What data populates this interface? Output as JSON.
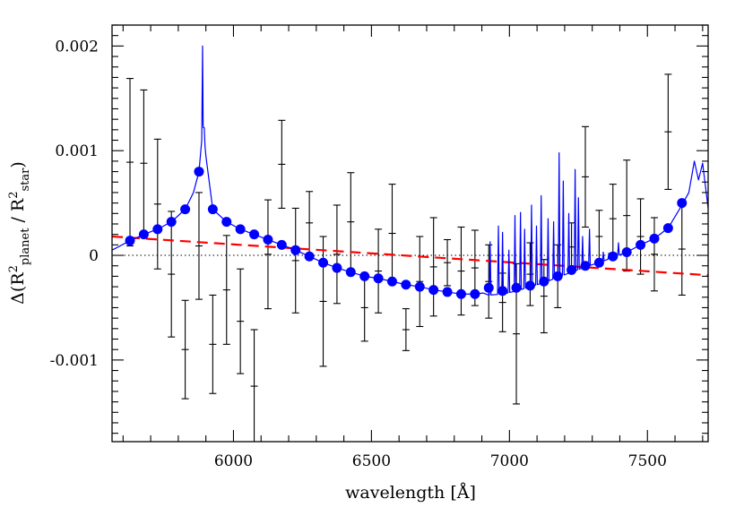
{
  "chart_data": {
    "type": "scatter",
    "title": "",
    "xlabel": "wavelength [Å]",
    "ylabel": {
      "prefix": "Δ(R",
      "exp1": "2",
      "sub1": "planet",
      "middle": " / R",
      "exp2": "2",
      "sub2": "star",
      "suffix": ")"
    },
    "xlim": [
      5560,
      7720
    ],
    "ylim": [
      -0.00178,
      0.0022
    ],
    "x_ticks": [
      6000,
      6500,
      7000,
      7500
    ],
    "x_tick_labels": [
      "6000",
      "6500",
      "7000",
      "7500"
    ],
    "y_ticks": [
      -0.001,
      0,
      0.001,
      0.002
    ],
    "y_tick_labels": [
      "-0.001",
      "0",
      "0.001",
      "0.002"
    ],
    "grid": false,
    "colors": {
      "model_line": "#0000ff",
      "binned_points": "#0000ff",
      "trend_line": "#ff0000",
      "data": "#000000",
      "zero_line": "#000000"
    },
    "series": [
      {
        "name": "observed data with error bars",
        "style": "errorbar",
        "points": [
          {
            "x": 5625,
            "y": 0.00089,
            "err": 0.0008
          },
          {
            "x": 5675,
            "y": 0.00088,
            "err": 0.0007
          },
          {
            "x": 5725,
            "y": 0.00049,
            "err": 0.00062
          },
          {
            "x": 5775,
            "y": -0.00018,
            "err": 0.0006
          },
          {
            "x": 5825,
            "y": -0.0009,
            "err": 0.00047
          },
          {
            "x": 5875,
            "y": 9e-05,
            "err": 0.00051
          },
          {
            "x": 5925,
            "y": -0.00085,
            "err": 0.00047
          },
          {
            "x": 5975,
            "y": -0.00033,
            "err": 0.00052
          },
          {
            "x": 6025,
            "y": -0.00063,
            "err": 0.0005
          },
          {
            "x": 6075,
            "y": -0.00125,
            "err": 0.00054
          },
          {
            "x": 6125,
            "y": 1e-05,
            "err": 0.00052
          },
          {
            "x": 6175,
            "y": 0.00087,
            "err": 0.00042
          },
          {
            "x": 6225,
            "y": -5e-05,
            "err": 0.0005
          },
          {
            "x": 6275,
            "y": 0.00031,
            "err": 0.0003
          },
          {
            "x": 6325,
            "y": -0.00044,
            "err": 0.00062
          },
          {
            "x": 6375,
            "y": 1e-05,
            "err": 0.00047
          },
          {
            "x": 6425,
            "y": 0.00032,
            "err": 0.00047
          },
          {
            "x": 6475,
            "y": -0.0005,
            "err": 0.00032
          },
          {
            "x": 6525,
            "y": -0.00015,
            "err": 0.0004
          },
          {
            "x": 6575,
            "y": 0.00021,
            "err": 0.00047
          },
          {
            "x": 6625,
            "y": -0.00071,
            "err": 0.0002
          },
          {
            "x": 6675,
            "y": -0.00025,
            "err": 0.00043
          },
          {
            "x": 6725,
            "y": -0.00011,
            "err": 0.00047
          },
          {
            "x": 6775,
            "y": -7e-05,
            "err": 0.00022
          },
          {
            "x": 6825,
            "y": -0.00015,
            "err": 0.00042
          },
          {
            "x": 6875,
            "y": -0.00012,
            "err": 0.00036
          },
          {
            "x": 6925,
            "y": -0.00025,
            "err": 0.00035
          },
          {
            "x": 6975,
            "y": -0.00045,
            "err": 0.00028
          },
          {
            "x": 7025,
            "y": -0.00075,
            "err": 0.00067
          },
          {
            "x": 7075,
            "y": -0.00018,
            "err": 0.0003
          },
          {
            "x": 7125,
            "y": -0.00039,
            "err": 0.00035
          },
          {
            "x": 7175,
            "y": -0.0002,
            "err": 0.0003
          },
          {
            "x": 7225,
            "y": 8e-05,
            "err": 0.00023
          },
          {
            "x": 7275,
            "y": 0.00075,
            "err": 0.00048
          },
          {
            "x": 7325,
            "y": 0.00018,
            "err": 0.00025
          },
          {
            "x": 7375,
            "y": 0.00035,
            "err": 0.00033
          },
          {
            "x": 7425,
            "y": 0.00038,
            "err": 0.00053
          },
          {
            "x": 7475,
            "y": 0.00018,
            "err": 0.00036
          },
          {
            "x": 7525,
            "y": 1e-05,
            "err": 0.00035
          },
          {
            "x": 7575,
            "y": 0.00118,
            "err": 0.00055
          },
          {
            "x": 7625,
            "y": 6e-05,
            "err": 0.00044
          }
        ]
      },
      {
        "name": "binned model",
        "style": "markers",
        "x": [
          5625,
          5675,
          5725,
          5775,
          5825,
          5875,
          5925,
          5975,
          6025,
          6075,
          6125,
          6175,
          6225,
          6275,
          6325,
          6375,
          6425,
          6475,
          6525,
          6575,
          6625,
          6675,
          6725,
          6775,
          6825,
          6875,
          6925,
          6975,
          7025,
          7075,
          7125,
          7175,
          7225,
          7275,
          7325,
          7375,
          7425,
          7475,
          7525,
          7575,
          7625
        ],
        "y": [
          0.00014,
          0.0002,
          0.00025,
          0.00032,
          0.00044,
          0.0008,
          0.00044,
          0.00032,
          0.00025,
          0.0002,
          0.00015,
          0.0001,
          5e-05,
          -1e-05,
          -7e-05,
          -0.00012,
          -0.00016,
          -0.0002,
          -0.00022,
          -0.00025,
          -0.00028,
          -0.0003,
          -0.00033,
          -0.00035,
          -0.00037,
          -0.00037,
          -0.00031,
          -0.00034,
          -0.00031,
          -0.00029,
          -0.00025,
          -0.0002,
          -0.00014,
          -0.0001,
          -7e-05,
          -1e-05,
          3e-05,
          0.0001,
          0.00016,
          0.00026,
          0.0005
        ]
      }
    ],
    "model_spectrum": {
      "name": "model transmission spectrum",
      "continuum_x": [
        5560,
        5625,
        5675,
        5725,
        5775,
        5825,
        5855,
        5875,
        5890,
        5900,
        5925,
        5975,
        6025,
        6075,
        6125,
        6175,
        6225,
        6275,
        6325,
        6375,
        6425,
        6475,
        6525,
        6575,
        6625,
        6675,
        6725,
        6775,
        6825,
        6875,
        6905,
        6925,
        6975,
        7025,
        7075,
        7125,
        7175,
        7225,
        7275,
        7325,
        7375,
        7425,
        7475,
        7525,
        7575,
        7625,
        7650,
        7670,
        7685,
        7700,
        7720
      ],
      "continuum_y": [
        5e-05,
        0.00014,
        0.0002,
        0.00025,
        0.00032,
        0.00044,
        0.0006,
        0.0008,
        0.00125,
        0.00095,
        0.00044,
        0.00032,
        0.00025,
        0.0002,
        0.00015,
        0.0001,
        5e-05,
        -1e-05,
        -7e-05,
        -0.00012,
        -0.00016,
        -0.0002,
        -0.00022,
        -0.00025,
        -0.00028,
        -0.0003,
        -0.00033,
        -0.00035,
        -0.00037,
        -0.00037,
        -0.00036,
        -0.00038,
        -0.00037,
        -0.00034,
        -0.0003,
        -0.00026,
        -0.00021,
        -0.00016,
        -0.00011,
        -7e-05,
        -2e-05,
        3e-05,
        0.0001,
        0.00016,
        0.00026,
        0.00048,
        0.0006,
        0.0009,
        0.00072,
        0.00088,
        0.00045
      ],
      "peaks": [
        {
          "x": 5888,
          "y": 0.002
        },
        {
          "x": 5894,
          "y": 0.00122
        },
        {
          "x": 6930,
          "y": 0.00013
        },
        {
          "x": 6960,
          "y": 0.00028
        },
        {
          "x": 6975,
          "y": 0.00022
        },
        {
          "x": 6998,
          "y": 5e-05
        },
        {
          "x": 7020,
          "y": 0.00038
        },
        {
          "x": 7040,
          "y": 0.00041
        },
        {
          "x": 7055,
          "y": 0.00025
        },
        {
          "x": 7080,
          "y": 0.00048
        },
        {
          "x": 7098,
          "y": 0.00028
        },
        {
          "x": 7115,
          "y": 0.00057
        },
        {
          "x": 7140,
          "y": 0.00035
        },
        {
          "x": 7160,
          "y": 0.00032
        },
        {
          "x": 7180,
          "y": 0.00098
        },
        {
          "x": 7195,
          "y": 0.00071
        },
        {
          "x": 7215,
          "y": 0.0004
        },
        {
          "x": 7238,
          "y": 0.00082
        },
        {
          "x": 7250,
          "y": 0.00055
        },
        {
          "x": 7265,
          "y": 0.00018
        },
        {
          "x": 7290,
          "y": 0.00025
        },
        {
          "x": 7340,
          "y": 3e-05
        },
        {
          "x": 7360,
          "y": 2e-05
        },
        {
          "x": 7395,
          "y": 0.00012
        }
      ]
    },
    "trend_line": {
      "name": "linear trend",
      "style": "dashed",
      "x": [
        5560,
        7720
      ],
      "y": [
        0.00018,
        -0.00019
      ]
    },
    "zero_line": {
      "name": "zero level",
      "style": "dotted",
      "y": 0
    }
  }
}
